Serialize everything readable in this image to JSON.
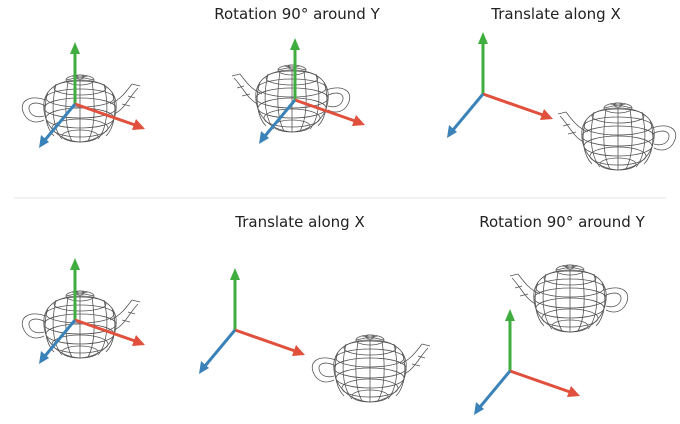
{
  "rows": [
    {
      "captions": [
        "Rotation 90° around Y",
        "Translate along X"
      ]
    },
    {
      "captions": [
        "Translate along X",
        "Rotation 90° around Y"
      ]
    }
  ]
}
